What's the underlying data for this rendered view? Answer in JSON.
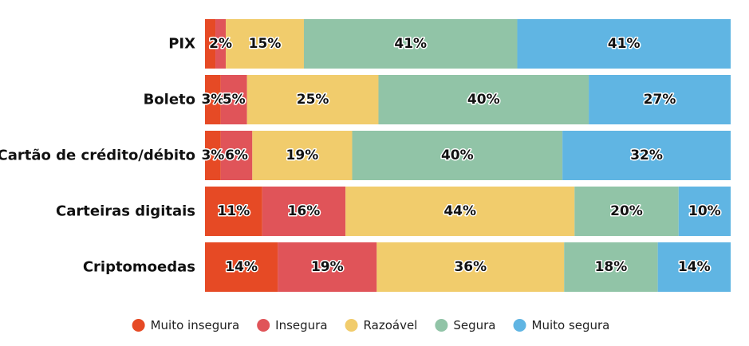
{
  "chart_data": {
    "type": "bar",
    "orientation": "horizontal",
    "stacked": "percent",
    "title": "",
    "xlabel": "",
    "ylabel": "",
    "xlim": [
      0,
      100
    ],
    "grid": false,
    "legend_position": "bottom-center",
    "categories": [
      "PIX",
      "Boleto",
      "Cartão de crédito/débito",
      "Carteiras digitais",
      "Criptomoedas"
    ],
    "series": [
      {
        "name": "Muito insegura",
        "color": "#E64A25",
        "values": [
          2,
          3,
          3,
          11,
          14
        ],
        "labels": [
          "",
          "3%",
          "3%",
          "11%",
          "14%"
        ]
      },
      {
        "name": "Insegura",
        "color": "#E05459",
        "values": [
          2,
          5,
          6,
          16,
          19
        ],
        "labels": [
          "2%",
          "5%",
          "6%",
          "16%",
          "19%"
        ]
      },
      {
        "name": "Razoável",
        "color": "#F1CC6C",
        "values": [
          15,
          25,
          19,
          44,
          36
        ],
        "labels": [
          "15%",
          "25%",
          "19%",
          "44%",
          "36%"
        ]
      },
      {
        "name": "Segura",
        "color": "#91C4A7",
        "values": [
          41,
          40,
          40,
          20,
          18
        ],
        "labels": [
          "41%",
          "40%",
          "40%",
          "20%",
          "18%"
        ]
      },
      {
        "name": "Muito segura",
        "color": "#60B5E3",
        "values": [
          41,
          27,
          32,
          10,
          14
        ],
        "labels": [
          "41%",
          "27%",
          "32%",
          "10%",
          "14%"
        ]
      }
    ]
  }
}
